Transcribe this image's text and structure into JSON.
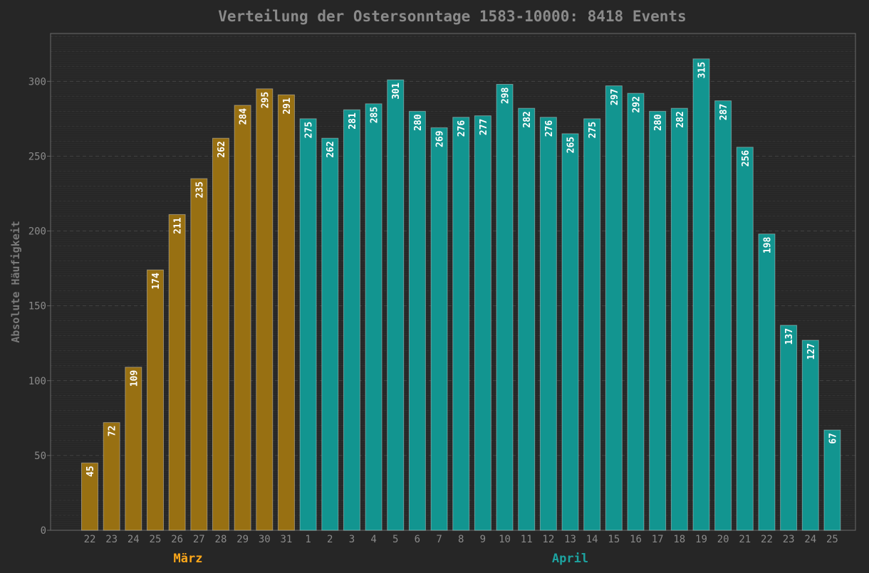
{
  "chart_data": {
    "type": "bar",
    "title": "Verteilung der Ostersonntage 1583-10000: 8418 Events",
    "xlabel": "",
    "ylabel": "Absolute Häufigkeit",
    "ylim": [
      0,
      332
    ],
    "yticks": [
      0,
      50,
      100,
      150,
      200,
      250,
      300
    ],
    "grid": true,
    "groups": [
      {
        "label": "März",
        "color": "#ffa81a",
        "bar_color": "#987012",
        "categories": [
          "22",
          "23",
          "24",
          "25",
          "26",
          "27",
          "28",
          "29",
          "30",
          "31"
        ],
        "values": [
          45,
          72,
          109,
          174,
          211,
          235,
          262,
          284,
          295,
          291
        ]
      },
      {
        "label": "April",
        "color": "#1da3a0",
        "bar_color": "#129590",
        "categories": [
          "1",
          "2",
          "3",
          "4",
          "5",
          "6",
          "7",
          "8",
          "9",
          "10",
          "11",
          "12",
          "13",
          "14",
          "15",
          "16",
          "17",
          "18",
          "19",
          "20",
          "21",
          "22",
          "23",
          "24",
          "25"
        ],
        "values": [
          275,
          262,
          281,
          285,
          301,
          280,
          269,
          276,
          277,
          298,
          282,
          276,
          265,
          275,
          297,
          292,
          280,
          282,
          315,
          287,
          256,
          198,
          137,
          127,
          67
        ]
      }
    ]
  }
}
